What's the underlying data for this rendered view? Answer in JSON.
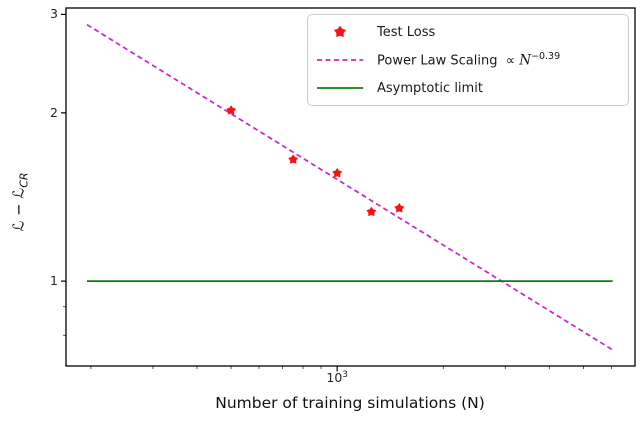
{
  "chart_data": {
    "type": "scatter",
    "title": "",
    "x_scale": "log",
    "y_scale": "log",
    "xlabel": "Number of training simulations (N)",
    "ylabel": "ℒ − ℒ_CR",
    "ylabel_parts": {
      "main": "ℒ − ℒ",
      "sub": "CR"
    },
    "xlim": [
      170,
      7000
    ],
    "ylim": [
      0.705,
      3.08
    ],
    "grid": "off",
    "series": [
      {
        "name": "Test Loss",
        "type": "scatter",
        "marker": "pentagon",
        "color": "#fa1010",
        "x": [
          500,
          750,
          1000,
          1250,
          1500
        ],
        "y": [
          2.02,
          1.65,
          1.56,
          1.33,
          1.35
        ]
      },
      {
        "name": "Power Law Scaling ∝ N^−0.39",
        "type": "line",
        "style": "dashed",
        "color": "#cb22cb",
        "relation": "y = 1.52·(N/1000)^−0.39",
        "coefficient_at_N1000": 1.52,
        "exponent": -0.39,
        "x_start": 195,
        "x_end": 6050
      },
      {
        "name": "Asymptotic limit",
        "type": "line",
        "style": "solid",
        "color": "#0f7d0f",
        "y": 1.0,
        "x_start": 195,
        "x_end": 6050
      }
    ],
    "x_major_tick": {
      "value": 1000,
      "label_base": "10",
      "label_exp": "3"
    },
    "x_minor_ticks": [
      200,
      300,
      400,
      500,
      600,
      700,
      800,
      900,
      2000,
      3000,
      4000,
      5000,
      6000
    ],
    "y_major_ticks": [
      {
        "value": 3,
        "label": "3"
      },
      {
        "value": 2,
        "label": "2"
      },
      {
        "value": 1,
        "label": "1"
      }
    ],
    "y_minor_ticks": [
      0.9,
      0.8
    ],
    "axis_color": "#000000",
    "legend": {
      "position": "upper right",
      "items": [
        {
          "name": "Test Loss"
        },
        {
          "prefix": "Power Law Scaling  ∝ ",
          "var": "N",
          "sup": "−0.39"
        },
        {
          "name": "Asymptotic limit"
        }
      ]
    }
  }
}
